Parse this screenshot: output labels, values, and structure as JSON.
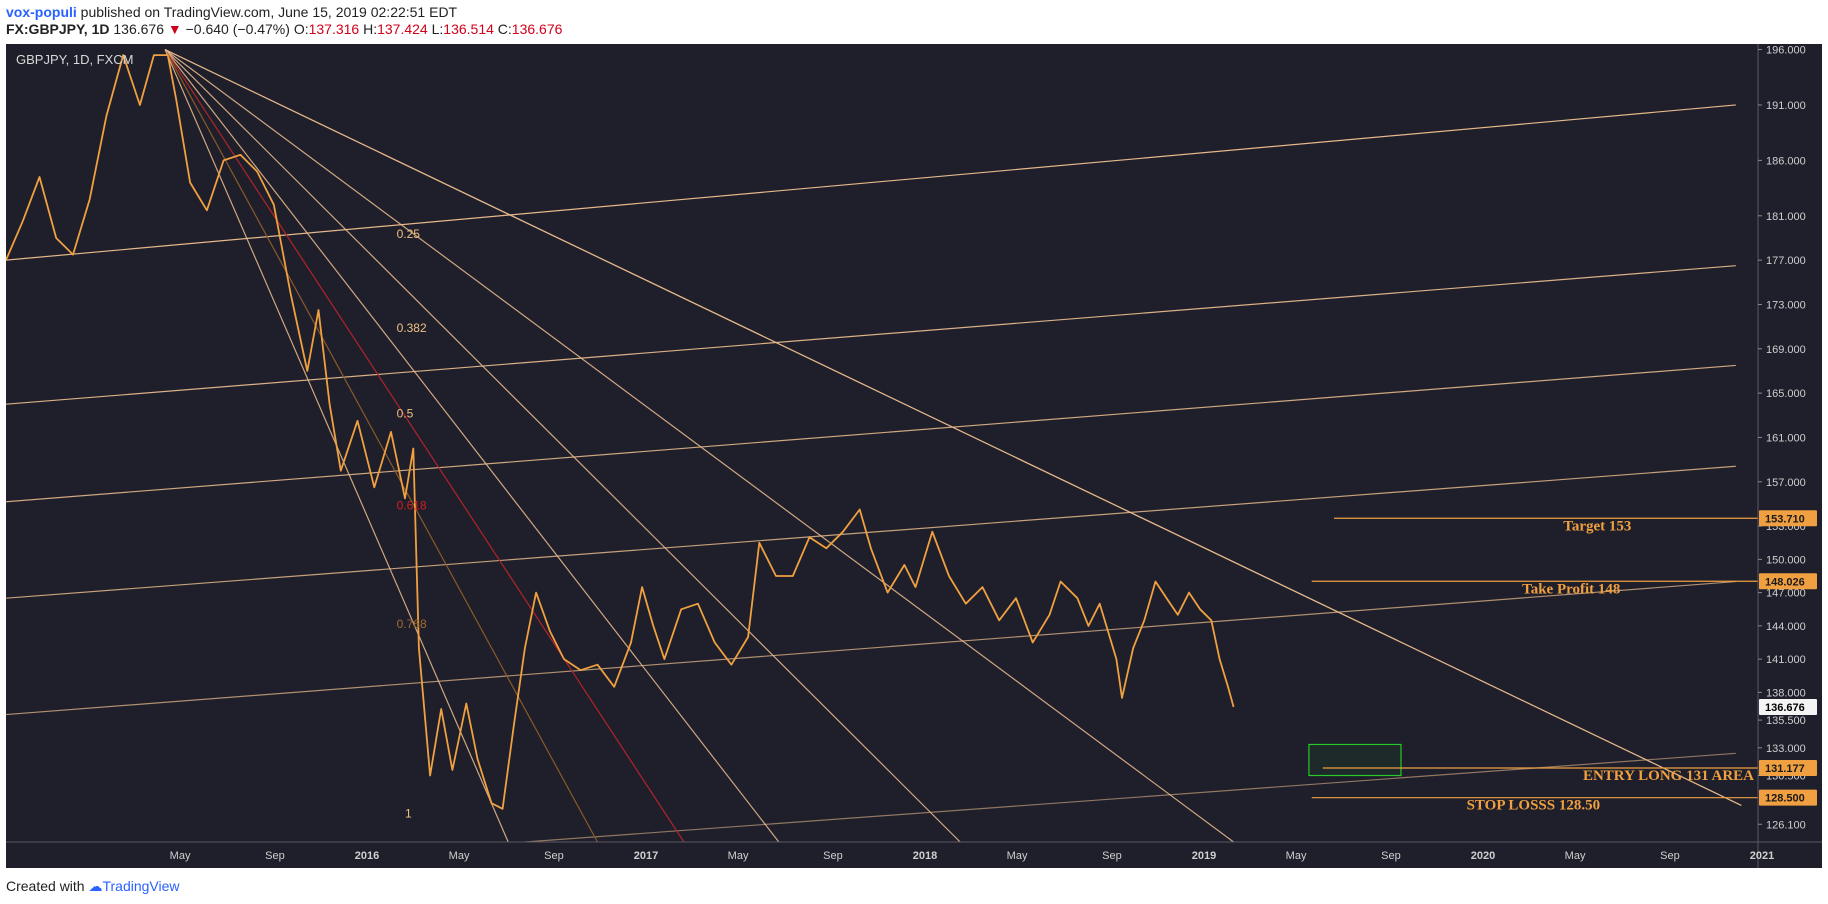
{
  "header": {
    "author": "vox-populi",
    "published_text": " published on TradingView.com, June 15, 2019 02:22:51 EDT",
    "symbol": "FX:GBPJPY, 1D",
    "last": "136.676",
    "change_arrow": "▼",
    "change": "−0.640 (−0.47%)",
    "open_label": "O:",
    "open": "137.316",
    "high_label": "H:",
    "high": "137.424",
    "low_label": "L:",
    "low": "136.514",
    "close_label": "C:",
    "close": "136.676"
  },
  "chart_label": "GBPJPY, 1D, FXCM",
  "footer": {
    "created_with": "Created with",
    "brand": "TradingView"
  },
  "colors": {
    "background": "#1e1f2a",
    "candle": "#f0a040",
    "line": "#f0c090",
    "fib_red": "#b0242a",
    "fib_dark": "#8a5a2a",
    "entry_box": "#28c828",
    "label_bg": "#f0a040"
  },
  "chart_data": {
    "type": "line",
    "title": "GBPJPY, 1D, FXCM",
    "ylim": [
      124.5,
      196.5
    ],
    "price_ticks": [
      196.0,
      191.0,
      186.0,
      181.0,
      177.0,
      173.0,
      169.0,
      165.0,
      161.0,
      157.0,
      153.0,
      150.0,
      147.0,
      144.0,
      141.0,
      138.0,
      135.5,
      133.0,
      130.5,
      126.1
    ],
    "price_tick_labels": [
      "196.000",
      "191.000",
      "186.000",
      "181.000",
      "177.000",
      "173.000",
      "169.000",
      "165.000",
      "161.000",
      "157.000",
      "153.000",
      "150.000",
      "147.000",
      "144.000",
      "141.000",
      "138.000",
      "135.500",
      "133.000",
      "130.500",
      "126.100"
    ],
    "time_ticks": [
      {
        "label": "May",
        "t": 0.33,
        "bold": false
      },
      {
        "label": "Sep",
        "t": 0.67,
        "bold": false
      },
      {
        "label": "2016",
        "t": 1.0,
        "bold": true
      },
      {
        "label": "May",
        "t": 1.33,
        "bold": false
      },
      {
        "label": "Sep",
        "t": 1.67,
        "bold": false
      },
      {
        "label": "2017",
        "t": 2.0,
        "bold": true
      },
      {
        "label": "May",
        "t": 2.33,
        "bold": false
      },
      {
        "label": "Sep",
        "t": 2.67,
        "bold": false
      },
      {
        "label": "2018",
        "t": 3.0,
        "bold": true
      },
      {
        "label": "May",
        "t": 3.33,
        "bold": false
      },
      {
        "label": "Sep",
        "t": 3.67,
        "bold": false
      },
      {
        "label": "2019",
        "t": 4.0,
        "bold": true
      },
      {
        "label": "May",
        "t": 4.33,
        "bold": false
      },
      {
        "label": "Sep",
        "t": 4.67,
        "bold": false
      },
      {
        "label": "2020",
        "t": 5.0,
        "bold": true
      },
      {
        "label": "May",
        "t": 5.33,
        "bold": false
      },
      {
        "label": "Sep",
        "t": 5.67,
        "bold": false
      },
      {
        "label": "2021",
        "t": 6.0,
        "bold": true
      }
    ],
    "price_path": [
      [
        0.0,
        177.0
      ],
      [
        0.06,
        180.5
      ],
      [
        0.12,
        184.5
      ],
      [
        0.18,
        179.0
      ],
      [
        0.24,
        177.5
      ],
      [
        0.3,
        182.5
      ],
      [
        0.36,
        190.0
      ],
      [
        0.42,
        195.5
      ],
      [
        0.48,
        191.0
      ],
      [
        0.53,
        195.5
      ],
      [
        0.58,
        195.5
      ],
      [
        0.61,
        191.5
      ],
      [
        0.66,
        184.0
      ],
      [
        0.72,
        181.5
      ],
      [
        0.78,
        186.0
      ],
      [
        0.84,
        186.5
      ],
      [
        0.9,
        185.0
      ],
      [
        0.96,
        182.0
      ],
      [
        1.02,
        174.0
      ],
      [
        1.08,
        167.0
      ],
      [
        1.12,
        172.5
      ],
      [
        1.16,
        164.0
      ],
      [
        1.2,
        158.0
      ],
      [
        1.26,
        162.5
      ],
      [
        1.32,
        156.5
      ],
      [
        1.38,
        161.5
      ],
      [
        1.43,
        155.5
      ],
      [
        1.46,
        160.0
      ],
      [
        1.48,
        142.0
      ],
      [
        1.52,
        130.5
      ],
      [
        1.56,
        136.5
      ],
      [
        1.6,
        131.0
      ],
      [
        1.65,
        137.0
      ],
      [
        1.69,
        132.0
      ],
      [
        1.74,
        128.0
      ],
      [
        1.78,
        127.5
      ],
      [
        1.82,
        135.0
      ],
      [
        1.86,
        142.0
      ],
      [
        1.9,
        147.0
      ],
      [
        1.95,
        143.5
      ],
      [
        2.0,
        141.0
      ],
      [
        2.06,
        140.0
      ],
      [
        2.12,
        140.5
      ],
      [
        2.18,
        138.5
      ],
      [
        2.24,
        142.5
      ],
      [
        2.28,
        147.5
      ],
      [
        2.32,
        144.0
      ],
      [
        2.36,
        141.0
      ],
      [
        2.42,
        145.5
      ],
      [
        2.48,
        146.0
      ],
      [
        2.54,
        142.5
      ],
      [
        2.6,
        140.5
      ],
      [
        2.66,
        143.0
      ],
      [
        2.7,
        151.5
      ],
      [
        2.76,
        148.5
      ],
      [
        2.82,
        148.5
      ],
      [
        2.88,
        152.0
      ],
      [
        2.94,
        151.0
      ],
      [
        3.0,
        152.5
      ],
      [
        3.06,
        154.5
      ],
      [
        3.1,
        151.0
      ],
      [
        3.16,
        147.0
      ],
      [
        3.22,
        149.5
      ],
      [
        3.26,
        147.5
      ],
      [
        3.32,
        152.5
      ],
      [
        3.38,
        148.5
      ],
      [
        3.44,
        146.0
      ],
      [
        3.5,
        147.5
      ],
      [
        3.56,
        144.5
      ],
      [
        3.62,
        146.5
      ],
      [
        3.68,
        142.5
      ],
      [
        3.74,
        145.0
      ],
      [
        3.78,
        148.0
      ],
      [
        3.84,
        146.5
      ],
      [
        3.88,
        144.0
      ],
      [
        3.92,
        146.0
      ],
      [
        3.98,
        141.0
      ],
      [
        4.0,
        137.5
      ],
      [
        4.04,
        142.0
      ],
      [
        4.08,
        144.5
      ],
      [
        4.12,
        148.0
      ],
      [
        4.16,
        146.5
      ],
      [
        4.2,
        145.0
      ],
      [
        4.24,
        147.0
      ],
      [
        4.28,
        145.5
      ],
      [
        4.32,
        144.5
      ],
      [
        4.35,
        141.0
      ],
      [
        4.38,
        138.5
      ],
      [
        4.4,
        136.676
      ]
    ],
    "fib_fan": {
      "origin": [
        0.57,
        196.0
      ],
      "levels": [
        {
          "label": "0.25",
          "end": [
            4.4,
            124.5
          ],
          "kind": "light"
        },
        {
          "label": "0.382",
          "end": [
            3.42,
            124.5
          ],
          "kind": "light"
        },
        {
          "label": "0.5",
          "end": [
            2.77,
            124.5
          ],
          "kind": "light"
        },
        {
          "label": "0.618",
          "end": [
            2.43,
            124.5
          ],
          "kind": "red"
        },
        {
          "label": "0.768",
          "end": [
            2.12,
            124.5
          ],
          "kind": "dark"
        },
        {
          "label": "1",
          "end": [
            1.8,
            124.5
          ],
          "kind": "light"
        }
      ],
      "label_pos": {
        "0.25": [
          1.4,
          179.0
        ],
        "0.382": [
          1.4,
          170.5
        ],
        "0.5": [
          1.4,
          162.8
        ],
        "0.618": [
          1.4,
          154.5
        ],
        "0.768": [
          1.4,
          143.8
        ],
        "1": [
          1.43,
          126.7
        ]
      }
    },
    "top_trendline": {
      "from": [
        0.57,
        196.0
      ],
      "to": [
        6.22,
        127.8
      ]
    },
    "parallel_channel": [
      {
        "from": [
          0.0,
          177.0
        ],
        "to": [
          6.2,
          191.0
        ],
        "alpha": 0.95
      },
      {
        "from": [
          0.0,
          164.0
        ],
        "to": [
          6.2,
          176.5
        ],
        "alpha": 0.9
      },
      {
        "from": [
          0.0,
          155.2
        ],
        "to": [
          6.2,
          167.5
        ],
        "alpha": 0.85
      },
      {
        "from": [
          0.0,
          146.5
        ],
        "to": [
          6.2,
          158.4
        ],
        "alpha": 0.8
      },
      {
        "from": [
          0.0,
          136.0
        ],
        "to": [
          6.2,
          148.0
        ],
        "alpha": 0.7
      },
      {
        "from": [
          1.86,
          124.5
        ],
        "to": [
          6.2,
          132.5
        ],
        "alpha": 0.55
      }
    ],
    "horizontal_levels": [
      {
        "price": 153.71,
        "label": "Target 153",
        "tag": "153.710",
        "from_t": 4.76
      },
      {
        "price": 148.026,
        "label": "Take Profit 148",
        "tag": "148.026",
        "from_t": 4.68
      },
      {
        "price": 131.177,
        "label": "ENTRY LONG 131 AREA",
        "tag": "131.177",
        "from_t": 4.72
      },
      {
        "price": 128.5,
        "label": "STOP LOSSS 128.50",
        "tag": "128.500",
        "from_t": 4.68
      }
    ],
    "entry_zone": {
      "t0": 4.67,
      "t1": 5.0,
      "p0": 130.5,
      "p1": 133.3
    },
    "last_price_tag": "136.676"
  }
}
